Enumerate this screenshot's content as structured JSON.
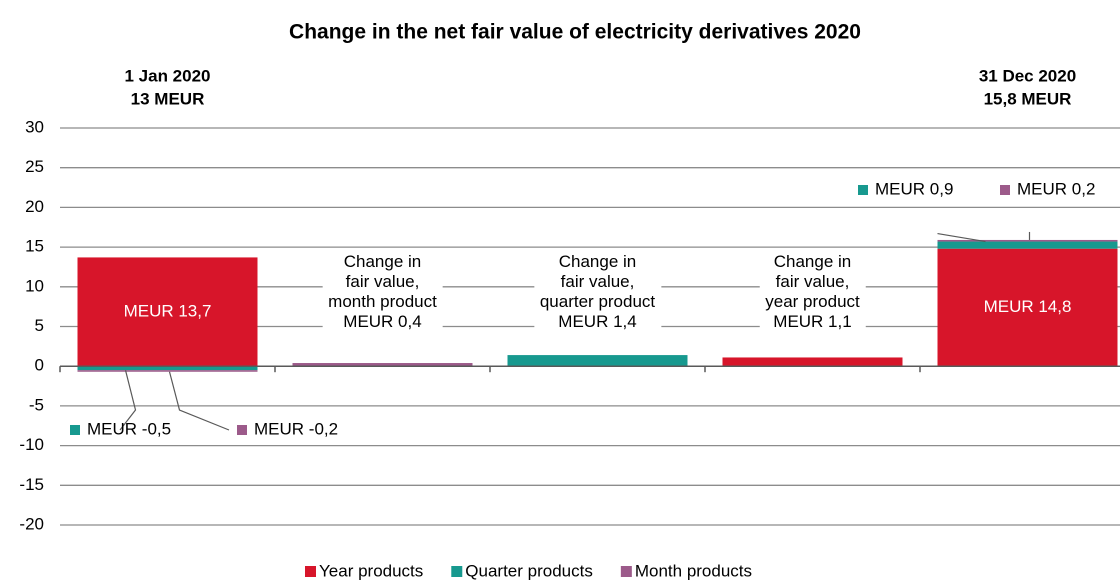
{
  "chart_data": {
    "type": "stacked_bar",
    "title": "Change in the net fair value of electricity derivatives 2020",
    "annotations": [
      [
        "1 Jan 2020",
        "13 MEUR"
      ],
      [
        "31 Dec 2020",
        "15,8 MEUR"
      ]
    ],
    "categories": [
      null,
      null,
      null,
      null,
      null
    ],
    "series": [
      {
        "name": "Year products",
        "color": "#d7152a",
        "values": [
          13.7,
          null,
          null,
          1.1,
          14.8
        ],
        "value_labels": [
          "MEUR 13,7",
          null,
          null,
          "Change in\nfair value,\nyear product\nMEUR 1,1",
          "MEUR 14,8"
        ]
      },
      {
        "name": "Quarter products",
        "color": "#17998f",
        "values": [
          -0.5,
          null,
          1.4,
          null,
          0.9
        ],
        "value_labels": [
          "MEUR -0,5",
          null,
          "Change in\nfair value,\nquarter product\nMEUR 1,4",
          null,
          "MEUR 0,9"
        ]
      },
      {
        "name": "Month products",
        "color": "#9c5a8a",
        "values": [
          -0.2,
          0.4,
          null,
          null,
          0.2
        ],
        "value_labels": [
          "MEUR -0,2",
          "Change in\nfair value,\nmonth product\nMEUR 0,4",
          null,
          null,
          "MEUR 0,2"
        ]
      }
    ],
    "ylim": [
      -20,
      30
    ],
    "yticks": [
      -20,
      -15,
      -10,
      -5,
      0,
      5,
      10,
      15,
      20,
      25,
      30
    ],
    "grid": true,
    "legend": "bottom"
  }
}
